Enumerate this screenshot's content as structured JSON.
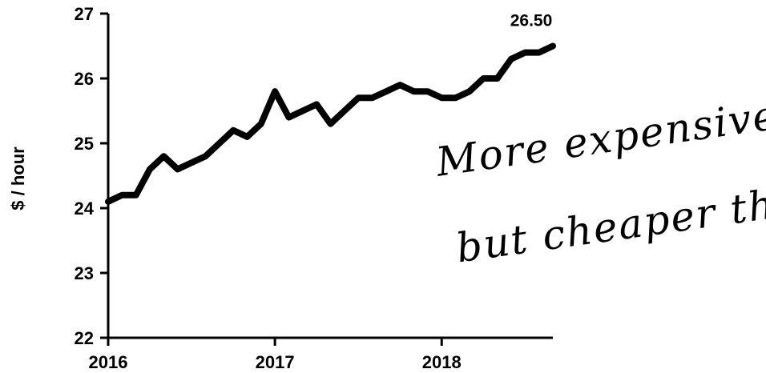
{
  "chart_data": {
    "type": "line",
    "ylabel": "$ / hour",
    "ylim": [
      22,
      27
    ],
    "yticks": [
      "22",
      "23",
      "24",
      "25",
      "26",
      "27"
    ],
    "xlim": [
      "2016-01",
      "2018-09"
    ],
    "xticks": [
      "2016",
      "2017",
      "2018"
    ],
    "x": [
      "2016-01",
      "2016-02",
      "2016-03",
      "2016-04",
      "2016-05",
      "2016-06",
      "2016-07",
      "2016-08",
      "2016-09",
      "2016-10",
      "2016-11",
      "2016-12",
      "2017-01",
      "2017-02",
      "2017-03",
      "2017-04",
      "2017-05",
      "2017-06",
      "2017-07",
      "2017-08",
      "2017-09",
      "2017-10",
      "2017-11",
      "2017-12",
      "2018-01",
      "2018-02",
      "2018-03",
      "2018-04",
      "2018-05",
      "2018-06",
      "2018-07",
      "2018-08",
      "2018-09"
    ],
    "series": [
      {
        "values": [
          24.1,
          24.2,
          24.2,
          24.6,
          24.8,
          24.6,
          24.7,
          24.8,
          25.0,
          25.2,
          25.1,
          25.3,
          25.8,
          25.4,
          25.5,
          25.6,
          25.3,
          25.5,
          25.7,
          25.7,
          25.8,
          25.9,
          25.8,
          25.8,
          25.7,
          25.7,
          25.8,
          26.0,
          26.0,
          26.3,
          26.4,
          26.4,
          26.5
        ]
      }
    ],
    "annotations": {
      "last_value_label": "26.50",
      "handwritten_line1": "More expensive,",
      "handwritten_line2": "but cheaper than"
    },
    "grid": false,
    "legend": "none"
  }
}
